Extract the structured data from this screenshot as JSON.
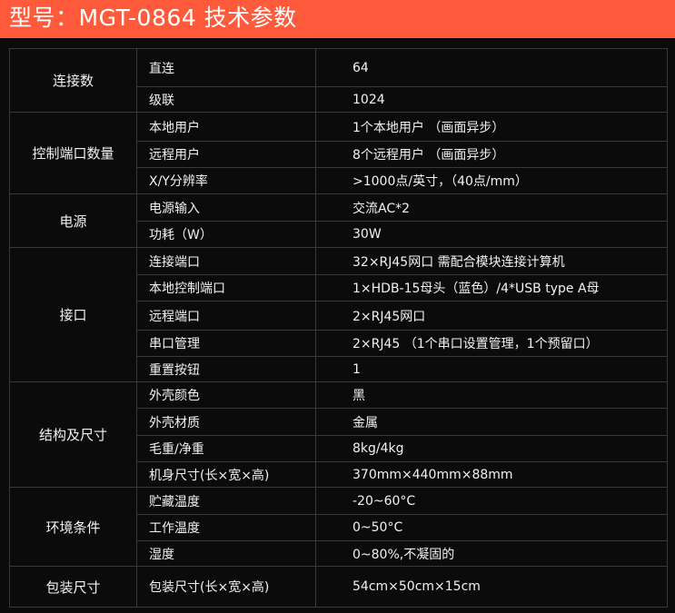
{
  "title": "型号：MGT-0864  技术参数",
  "colors": {
    "header_bg": "#ff5a3c",
    "background": "#0b0b0b",
    "text": "#f2f2f2"
  },
  "groups": [
    {
      "name": "连接数",
      "rows": [
        {
          "key": "直连",
          "value": "64"
        },
        {
          "key": "级联",
          "value": "1024"
        }
      ]
    },
    {
      "name": "控制端口数量",
      "rows": [
        {
          "key": "本地用户",
          "value": "1个本地用户 （画面异步）"
        },
        {
          "key": "远程用户",
          "value": "8个远程用户 （画面异步）"
        },
        {
          "key": "X/Y分辨率",
          "value": ">1000点/英寸，（40点/mm）"
        }
      ]
    },
    {
      "name": "电源",
      "rows": [
        {
          "key": "电源输入",
          "value": "交流AC*2"
        },
        {
          "key": "功耗（W）",
          "value": "30W"
        }
      ]
    },
    {
      "name": "接口",
      "rows": [
        {
          "key": "连接端口",
          "value": "32×RJ45网口 需配合模块连接计算机"
        },
        {
          "key": "本地控制端口",
          "value": "1×HDB-15母头（蓝色）/4*USB type A母"
        },
        {
          "key": "远程端口",
          "value": "2×RJ45网口"
        },
        {
          "key": "串口管理",
          "value": "2×RJ45 （1个串口设置管理，1个预留口）"
        },
        {
          "key": "重置按钮",
          "value": "1"
        }
      ]
    },
    {
      "name": "结构及尺寸",
      "rows": [
        {
          "key": "外壳颜色",
          "value": "黑"
        },
        {
          "key": "外壳材质",
          "value": "金属"
        },
        {
          "key": "毛重/净重",
          "value": "8kg/4kg"
        },
        {
          "key": "机身尺寸(长×宽×高)",
          "value": "370mm×440mm×88mm"
        }
      ]
    },
    {
      "name": "环境条件",
      "rows": [
        {
          "key": "贮藏温度",
          "value": "-20~60°C"
        },
        {
          "key": "工作温度",
          "value": "0~50°C"
        },
        {
          "key": "湿度",
          "value": "0~80%,不凝固的"
        }
      ]
    },
    {
      "name": "包装尺寸",
      "rows": [
        {
          "key": "包装尺寸(长×宽×高)",
          "value": "54cm×50cm×15cm"
        }
      ]
    }
  ]
}
